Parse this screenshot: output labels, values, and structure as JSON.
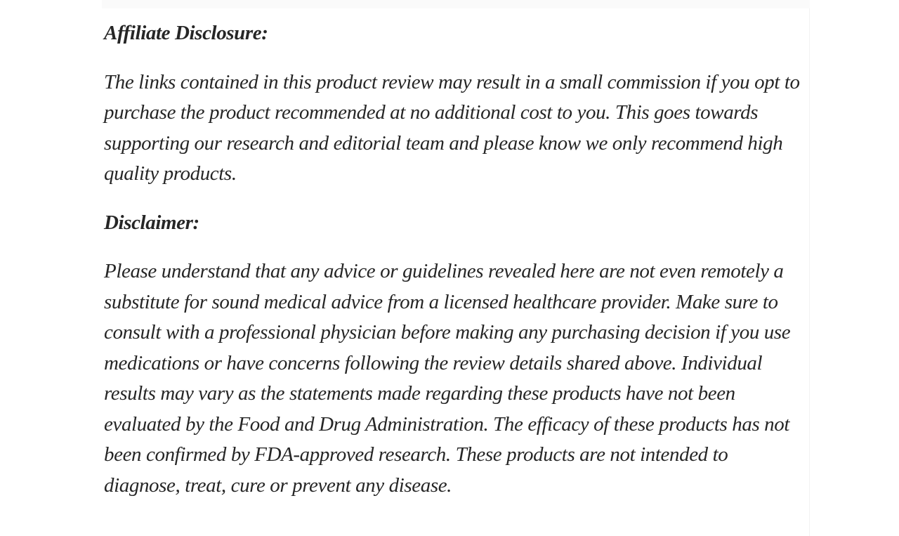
{
  "page": {
    "background_color": "#ffffff",
    "text_color": "#262626",
    "top_strip_color": "#fafafa",
    "column_edge_color": "#f2f2f2"
  },
  "article": {
    "sections": [
      {
        "heading": "Affiliate Disclosure:",
        "body": "The links contained in this product review may result in a small commission if you opt to purchase the product recommended at no additional cost to you. This goes towards supporting our research and editorial team and please know we only recommend high quality products."
      },
      {
        "heading": "Disclaimer:",
        "body": "Please understand that any advice or guidelines revealed here are not even remotely a substitute for sound medical advice from a licensed healthcare provider. Make sure to consult with a professional physician before making any purchasing decision if you use medications or have concerns following the review details shared above. Individual results may vary as the statements made regarding these products have not been evaluated by the Food and Drug Administration. The efficacy of these products has not been confirmed by FDA-approved research. These products are not intended to diagnose, treat, cure or prevent any disease."
      }
    ]
  }
}
